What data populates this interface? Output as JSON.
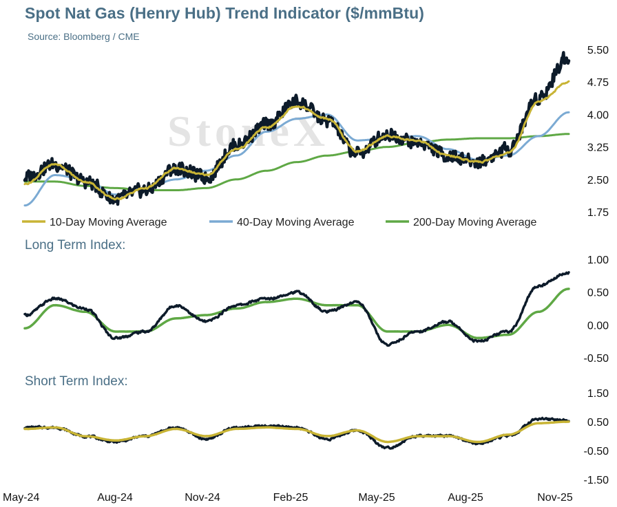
{
  "header": {
    "title": "Spot Nat Gas (Henry Hub) Trend Indicator ($/mmBtu)",
    "source": "Source: Bloomberg / CME",
    "watermark": "StoneX"
  },
  "colors": {
    "price": "#0d1b2a",
    "ma10": "#c8b435",
    "ma40": "#7baad3",
    "ma200": "#5fa845",
    "long_index": "#0d1b2a",
    "long_signal": "#5fa845",
    "short_index": "#0d1b2a",
    "short_signal": "#c8b435"
  },
  "chart_data": [
    {
      "type": "line",
      "title": "Spot Nat Gas (Henry Hub) Trend Indicator ($/mmBtu)",
      "ylim": [
        1.75,
        5.5
      ],
      "yticks": [
        "5.50",
        "4.75",
        "4.00",
        "3.25",
        "2.50",
        "1.75"
      ],
      "xticks": [
        "May-24",
        "Aug-24",
        "Nov-24",
        "Feb-25",
        "May-25",
        "Aug-25",
        "Nov-25"
      ],
      "x": [
        "May-24",
        "Jun-24",
        "Jul-24",
        "Aug-24",
        "Sep-24",
        "Oct-24",
        "Nov-24",
        "Dec-24",
        "Jan-25",
        "Feb-25",
        "Mar-25",
        "Apr-25",
        "May-25",
        "Jun-25",
        "Jul-25",
        "Aug-25",
        "Sep-25",
        "Oct-25",
        "Nov-25"
      ],
      "series": [
        {
          "name": "Spot",
          "values": [
            2.55,
            2.85,
            2.45,
            2.05,
            2.25,
            2.75,
            2.55,
            3.3,
            3.75,
            4.3,
            3.85,
            3.1,
            3.55,
            3.35,
            3.05,
            2.9,
            3.2,
            4.4,
            5.35
          ]
        },
        {
          "name": "10-Day Moving Average",
          "values": [
            2.4,
            2.85,
            2.45,
            2.05,
            2.3,
            2.75,
            2.6,
            3.2,
            3.7,
            4.2,
            3.9,
            3.15,
            3.5,
            3.4,
            3.05,
            2.9,
            3.1,
            4.3,
            4.75
          ]
        },
        {
          "name": "40-Day Moving Average",
          "values": [
            1.9,
            2.6,
            2.5,
            2.15,
            2.3,
            2.5,
            2.7,
            3.05,
            3.6,
            3.9,
            4.0,
            3.4,
            3.45,
            3.5,
            3.2,
            2.95,
            3.05,
            3.5,
            4.05
          ]
        },
        {
          "name": "200-Day Moving Average",
          "values": [
            2.45,
            2.45,
            2.35,
            2.3,
            2.25,
            2.25,
            2.3,
            2.5,
            2.7,
            2.9,
            3.05,
            3.15,
            3.25,
            3.35,
            3.42,
            3.45,
            3.45,
            3.5,
            3.55
          ]
        }
      ],
      "legend": [
        "10-Day Moving Average",
        "40-Day Moving Average",
        "200-Day Moving Average"
      ],
      "legend_placement": "bottom"
    },
    {
      "type": "line",
      "title": "Long Term Index:",
      "ylim": [
        -0.5,
        1.0
      ],
      "yticks": [
        "1.00",
        "0.50",
        "0.00",
        "-0.50"
      ],
      "x": [
        "May-24",
        "Jun-24",
        "Jul-24",
        "Aug-24",
        "Sep-24",
        "Oct-24",
        "Nov-24",
        "Dec-24",
        "Jan-25",
        "Feb-25",
        "Mar-25",
        "Apr-25",
        "May-25",
        "Jun-25",
        "Jul-25",
        "Aug-25",
        "Sep-25",
        "Oct-25",
        "Nov-25"
      ],
      "series": [
        {
          "values": [
            0.15,
            0.4,
            0.25,
            -0.2,
            -0.1,
            0.3,
            0.05,
            0.3,
            0.4,
            0.5,
            0.2,
            0.35,
            -0.3,
            -0.1,
            0.05,
            -0.25,
            -0.1,
            0.6,
            0.8
          ]
        },
        {
          "values": [
            -0.05,
            0.3,
            0.2,
            -0.1,
            -0.1,
            0.1,
            0.15,
            0.25,
            0.35,
            0.4,
            0.3,
            0.3,
            -0.1,
            -0.1,
            0.0,
            -0.2,
            -0.15,
            0.2,
            0.55
          ]
        }
      ]
    },
    {
      "type": "line",
      "title": "Short Term Index:",
      "ylim": [
        -1.5,
        1.5
      ],
      "yticks": [
        "1.50",
        "0.50",
        "-0.50",
        "-1.50"
      ],
      "xticks": [
        "May-24",
        "Aug-24",
        "Nov-24",
        "Feb-25",
        "May-25",
        "Aug-25",
        "Nov-25"
      ],
      "x": [
        "May-24",
        "Jun-24",
        "Jul-24",
        "Aug-24",
        "Sep-24",
        "Oct-24",
        "Nov-24",
        "Dec-24",
        "Jan-25",
        "Feb-25",
        "Mar-25",
        "Apr-25",
        "May-25",
        "Jun-25",
        "Jul-25",
        "Aug-25",
        "Sep-25",
        "Oct-25",
        "Nov-25"
      ],
      "series": [
        {
          "values": [
            0.3,
            0.3,
            0.0,
            -0.2,
            0.0,
            0.3,
            -0.1,
            0.3,
            0.35,
            0.3,
            -0.1,
            0.2,
            -0.4,
            0.0,
            0.0,
            -0.25,
            0.0,
            0.6,
            0.55
          ]
        },
        {
          "values": [
            0.25,
            0.3,
            0.0,
            -0.15,
            0.0,
            0.25,
            0.0,
            0.25,
            0.3,
            0.25,
            0.0,
            0.2,
            -0.2,
            0.0,
            0.0,
            -0.2,
            0.05,
            0.45,
            0.5
          ]
        }
      ]
    }
  ]
}
